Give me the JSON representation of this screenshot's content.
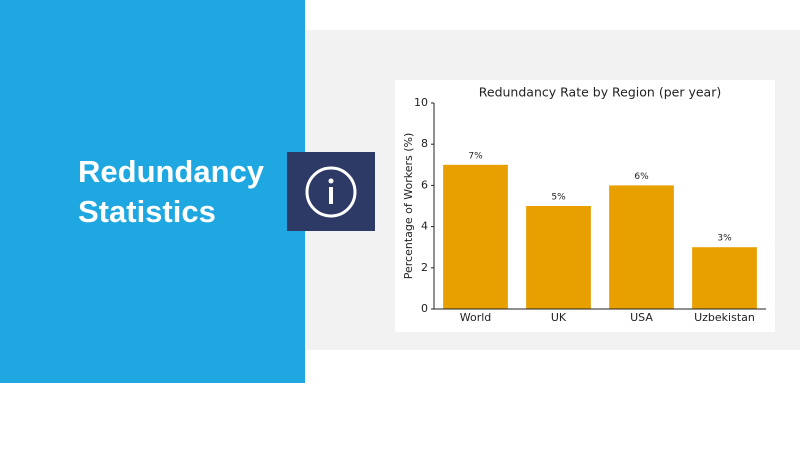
{
  "slide": {
    "title": "Redundancy Statistics"
  },
  "chart_data": {
    "type": "bar",
    "title": "Redundancy Rate by Region (per year)",
    "y_label": "Percentage of Workers (%)",
    "categories": [
      "World",
      "UK",
      "USA",
      "Uzbekistan"
    ],
    "values": [
      7,
      5,
      6,
      3
    ],
    "value_labels": [
      "7%",
      "5%",
      "6%",
      "3%"
    ],
    "color": "#e8a000",
    "ylim": [
      0,
      10
    ],
    "yticks": [
      0,
      2,
      4,
      6,
      8,
      10
    ],
    "grid": false
  }
}
